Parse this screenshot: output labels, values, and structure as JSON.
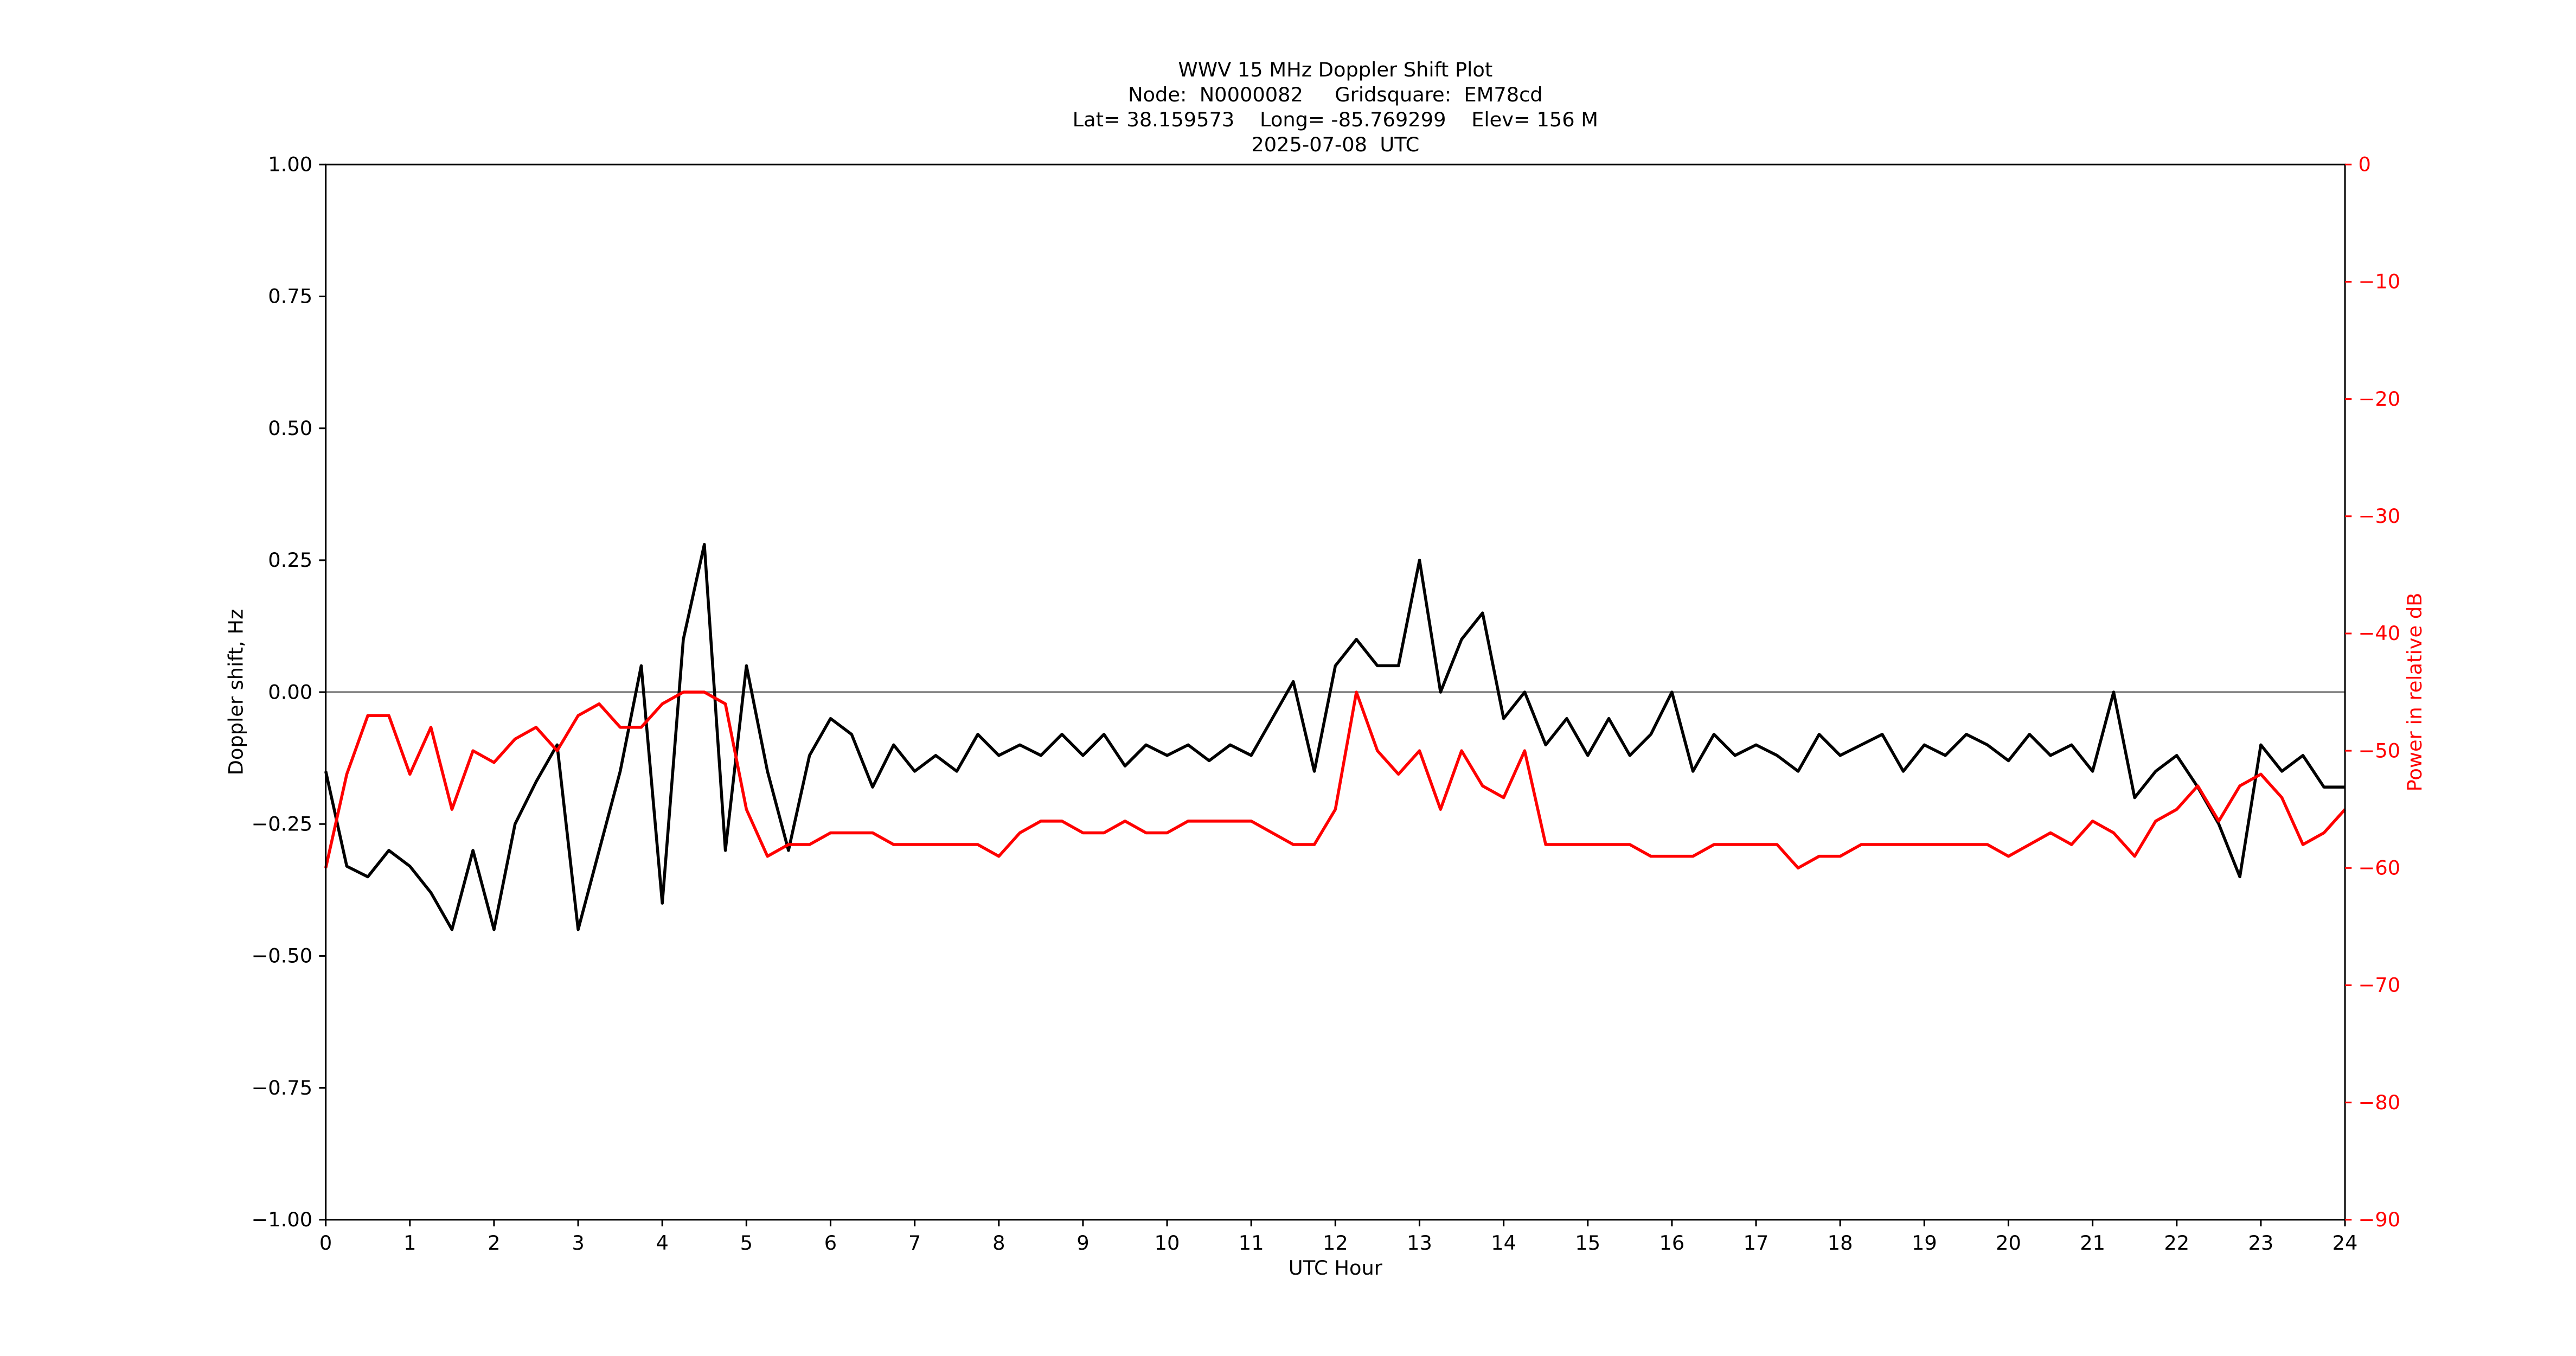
{
  "chart_data": {
    "type": "line",
    "title": [
      "WWV 15 MHz Doppler Shift Plot",
      "Node:  N0000082     Gridsquare:  EM78cd",
      "Lat= 38.159573    Long= -85.769299    Elev= 156 M",
      "2025-07-08  UTC"
    ],
    "xlabel": "UTC Hour",
    "ylabel": "Doppler shift, Hz",
    "y2label": "Power in relative dB",
    "x": [
      0,
      0.25,
      0.5,
      0.75,
      1,
      1.25,
      1.5,
      1.75,
      2,
      2.25,
      2.5,
      2.75,
      3,
      3.25,
      3.5,
      3.75,
      4,
      4.25,
      4.5,
      4.75,
      5,
      5.25,
      5.5,
      5.75,
      6,
      6.25,
      6.5,
      6.75,
      7,
      7.25,
      7.5,
      7.75,
      8,
      8.25,
      8.5,
      8.75,
      9,
      9.25,
      9.5,
      9.75,
      10,
      10.25,
      10.5,
      10.75,
      11,
      11.25,
      11.5,
      11.75,
      12,
      12.25,
      12.5,
      12.75,
      13,
      13.25,
      13.5,
      13.75,
      14,
      14.25,
      14.5,
      14.75,
      15,
      15.25,
      15.5,
      15.75,
      16,
      16.25,
      16.5,
      16.75,
      17,
      17.25,
      17.5,
      17.75,
      18,
      18.25,
      18.5,
      18.75,
      19,
      19.25,
      19.5,
      19.75,
      20,
      20.25,
      20.5,
      20.75,
      21,
      21.25,
      21.5,
      21.75,
      22,
      22.25,
      22.5,
      22.75,
      23,
      23.25,
      23.5,
      23.75,
      24
    ],
    "series": [
      {
        "name": "Doppler shift",
        "color": "#000000",
        "values": [
          -0.15,
          -0.33,
          -0.35,
          -0.3,
          -0.33,
          -0.38,
          -0.45,
          -0.3,
          -0.45,
          -0.25,
          -0.17,
          -0.1,
          -0.45,
          -0.3,
          -0.15,
          0.05,
          -0.4,
          0.1,
          0.28,
          -0.3,
          0.05,
          -0.15,
          -0.3,
          -0.12,
          -0.05,
          -0.08,
          -0.18,
          -0.1,
          -0.15,
          -0.12,
          -0.15,
          -0.08,
          -0.12,
          -0.1,
          -0.12,
          -0.08,
          -0.12,
          -0.08,
          -0.14,
          -0.1,
          -0.12,
          -0.1,
          -0.13,
          -0.1,
          -0.12,
          -0.05,
          0.02,
          -0.15,
          0.05,
          0.1,
          0.05,
          0.05,
          0.25,
          0.0,
          0.1,
          0.15,
          -0.05,
          0.0,
          -0.1,
          -0.05,
          -0.12,
          -0.05,
          -0.12,
          -0.08,
          0.0,
          -0.15,
          -0.08,
          -0.12,
          -0.1,
          -0.12,
          -0.15,
          -0.08,
          -0.12,
          -0.1,
          -0.08,
          -0.15,
          -0.1,
          -0.12,
          -0.08,
          -0.1,
          -0.13,
          -0.08,
          -0.12,
          -0.1,
          -0.15,
          0.0,
          -0.2,
          -0.15,
          -0.12,
          -0.18,
          -0.25,
          -0.35,
          -0.1,
          -0.15,
          -0.12,
          -0.18,
          -0.18
        ]
      },
      {
        "name": "Power",
        "color": "#ff0000",
        "axis": "y2",
        "values": [
          -60,
          -52,
          -47,
          -47,
          -52,
          -48,
          -55,
          -50,
          -51,
          -49,
          -48,
          -50,
          -47,
          -46,
          -48,
          -48,
          -46,
          -45,
          -45,
          -46,
          -55,
          -59,
          -58,
          -58,
          -57,
          -57,
          -57,
          -58,
          -58,
          -58,
          -58,
          -58,
          -59,
          -57,
          -56,
          -56,
          -57,
          -57,
          -56,
          -57,
          -57,
          -56,
          -56,
          -56,
          -56,
          -57,
          -58,
          -58,
          -55,
          -45,
          -50,
          -52,
          -50,
          -55,
          -50,
          -53,
          -54,
          -50,
          -58,
          -58,
          -58,
          -58,
          -58,
          -59,
          -59,
          -59,
          -58,
          -58,
          -58,
          -58,
          -60,
          -59,
          -59,
          -58,
          -58,
          -58,
          -58,
          -58,
          -58,
          -58,
          -59,
          -58,
          -57,
          -58,
          -56,
          -57,
          -59,
          -56,
          -55,
          -53,
          -56,
          -53,
          -52,
          -54,
          -58,
          -57,
          -55
        ]
      }
    ],
    "xlim": [
      0,
      24
    ],
    "xticks": [
      0,
      1,
      2,
      3,
      4,
      5,
      6,
      7,
      8,
      9,
      10,
      11,
      12,
      13,
      14,
      15,
      16,
      17,
      18,
      19,
      20,
      21,
      22,
      23,
      24
    ],
    "ylim": [
      -1,
      1
    ],
    "yticks": [
      {
        "value": -1,
        "label": "−1.00"
      },
      {
        "value": -0.75,
        "label": "−0.75"
      },
      {
        "value": -0.5,
        "label": "−0.50"
      },
      {
        "value": -0.25,
        "label": "−0.25"
      },
      {
        "value": 0,
        "label": "0.00"
      },
      {
        "value": 0.25,
        "label": "0.25"
      },
      {
        "value": 0.5,
        "label": "0.50"
      },
      {
        "value": 0.75,
        "label": "0.75"
      },
      {
        "value": 1,
        "label": "1.00"
      }
    ],
    "y2lim": [
      -90,
      0
    ],
    "y2ticks": [
      {
        "value": -90,
        "label": "−90"
      },
      {
        "value": -80,
        "label": "−80"
      },
      {
        "value": -70,
        "label": "−70"
      },
      {
        "value": -60,
        "label": "−60"
      },
      {
        "value": -50,
        "label": "−50"
      },
      {
        "value": -40,
        "label": "−40"
      },
      {
        "value": -30,
        "label": "−30"
      },
      {
        "value": -20,
        "label": "−20"
      },
      {
        "value": -10,
        "label": "−10"
      },
      0
    ],
    "hline": 0,
    "hline_color": "#808080"
  }
}
